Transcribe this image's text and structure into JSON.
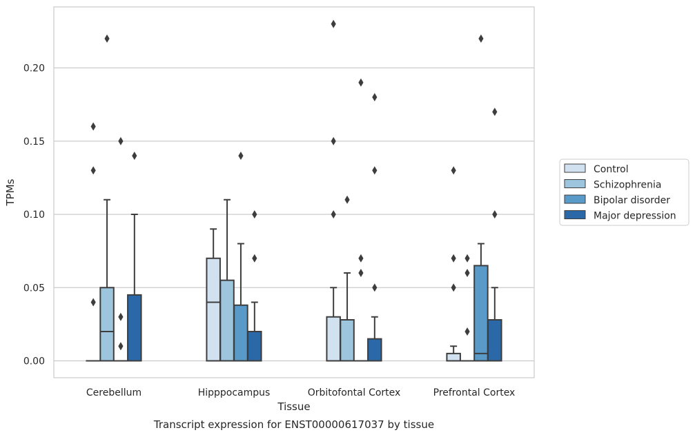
{
  "chart_data": {
    "type": "boxplot",
    "title": "Transcript expression for ENST00000617037 by tissue",
    "xlabel": "Tissue",
    "ylabel": "TPMs",
    "ylim": [
      -0.011,
      0.242
    ],
    "yticks": [
      "0.00",
      "0.05",
      "0.10",
      "0.15",
      "0.20"
    ],
    "grid": true,
    "legend_position": "right",
    "categories": [
      "Cerebellum",
      "Hipppocampus",
      "Orbitofontal Cortex",
      "Prefrontal Cortex"
    ],
    "series": [
      {
        "name": "Control",
        "color": "#d1e1f0",
        "boxes": [
          {
            "q1": 0,
            "median": 0,
            "q3": 0,
            "whisker_low": 0,
            "whisker_high": 0,
            "outliers": [
              0.04,
              0.13,
              0.16
            ]
          },
          {
            "q1": 0,
            "median": 0.04,
            "q3": 0.07,
            "whisker_low": 0,
            "whisker_high": 0.09,
            "outliers": []
          },
          {
            "q1": 0,
            "median": 0,
            "q3": 0.03,
            "whisker_low": 0,
            "whisker_high": 0.05,
            "outliers": [
              0.1,
              0.15,
              0.23
            ]
          },
          {
            "q1": 0,
            "median": 0,
            "q3": 0.005,
            "whisker_low": 0,
            "whisker_high": 0.01,
            "outliers": [
              0.05,
              0.07,
              0.13
            ]
          }
        ]
      },
      {
        "name": "Schizophrenia",
        "color": "#9dc5dd",
        "boxes": [
          {
            "q1": 0,
            "median": 0.02,
            "q3": 0.05,
            "whisker_low": 0,
            "whisker_high": 0.11,
            "outliers": [
              0.22
            ]
          },
          {
            "q1": 0,
            "median": 0,
            "q3": 0.055,
            "whisker_low": 0,
            "whisker_high": 0.11,
            "outliers": []
          },
          {
            "q1": 0,
            "median": 0,
            "q3": 0.028,
            "whisker_low": 0,
            "whisker_high": 0.06,
            "outliers": [
              0.11
            ]
          },
          {
            "q1": 0,
            "median": 0,
            "q3": 0,
            "whisker_low": 0,
            "whisker_high": 0,
            "outliers": [
              0.02,
              0.06,
              0.07
            ]
          }
        ]
      },
      {
        "name": "Bipolar disorder",
        "color": "#5a9ac9",
        "boxes": [
          {
            "q1": 0,
            "median": 0,
            "q3": 0,
            "whisker_low": 0,
            "whisker_high": 0,
            "outliers": [
              0.01,
              0.03,
              0.15
            ]
          },
          {
            "q1": 0,
            "median": 0,
            "q3": 0.038,
            "whisker_low": 0,
            "whisker_high": 0.08,
            "outliers": [
              0.14
            ]
          },
          {
            "q1": 0,
            "median": 0,
            "q3": 0,
            "whisker_low": 0,
            "whisker_high": 0,
            "outliers": [
              0.06,
              0.07,
              0.19
            ]
          },
          {
            "q1": 0,
            "median": 0.005,
            "q3": 0.065,
            "whisker_low": 0,
            "whisker_high": 0.08,
            "outliers": [
              0.22
            ]
          }
        ]
      },
      {
        "name": "Major depression",
        "color": "#2a68a8",
        "boxes": [
          {
            "q1": 0,
            "median": 0,
            "q3": 0.045,
            "whisker_low": 0,
            "whisker_high": 0.1,
            "outliers": [
              0.14
            ]
          },
          {
            "q1": 0,
            "median": 0,
            "q3": 0.02,
            "whisker_low": 0,
            "whisker_high": 0.04,
            "outliers": [
              0.07,
              0.1
            ]
          },
          {
            "q1": 0,
            "median": 0,
            "q3": 0.015,
            "whisker_low": 0,
            "whisker_high": 0.03,
            "outliers": [
              0.05,
              0.13,
              0.18
            ]
          },
          {
            "q1": 0,
            "median": 0,
            "q3": 0.028,
            "whisker_low": 0,
            "whisker_high": 0.05,
            "outliers": [
              0.1,
              0.17
            ]
          }
        ]
      }
    ]
  }
}
